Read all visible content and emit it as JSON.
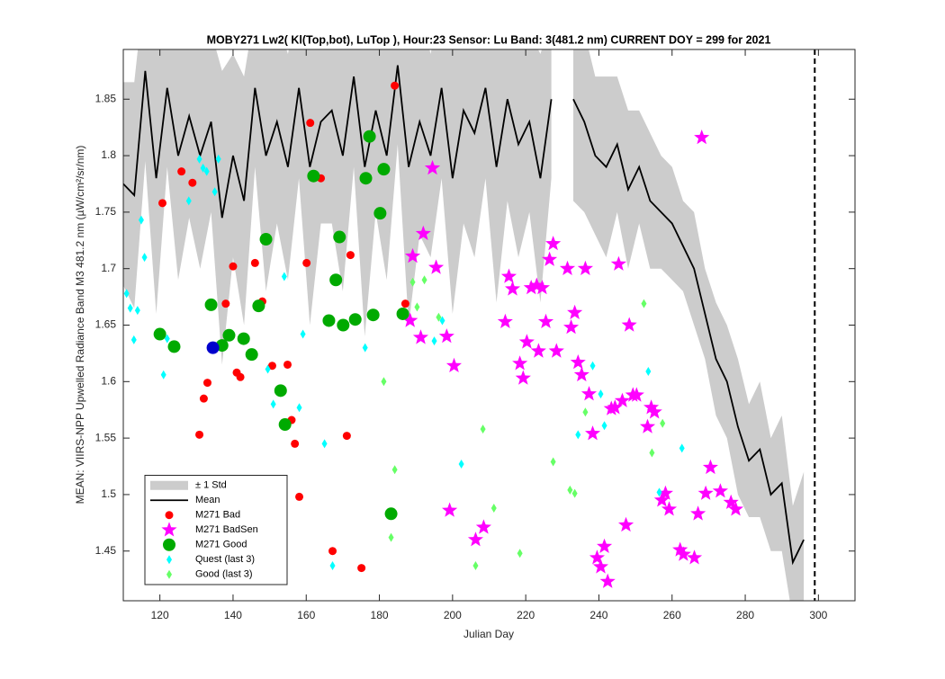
{
  "chart_data": {
    "type": "scatter",
    "title": "MOBY271   Lw2( Kl(Top,bot), LuTop ),   Hour:23 Sensor: Lu Band: 3(481.2 nm)   CURRENT DOY = 299 for 2021",
    "x_label": "Julian Day",
    "y_label": "MEAN: VIIRS-NPP Upwelled Radiance Band M3 481.2 nm (µW/cm²/sr/nm)",
    "xlim": [
      110,
      310
    ],
    "ylim": [
      1.406,
      1.894
    ],
    "xticks": [
      120,
      140,
      160,
      180,
      200,
      220,
      240,
      260,
      280,
      300
    ],
    "yticks": [
      1.45,
      1.5,
      1.55,
      1.6,
      1.65,
      1.7,
      1.75,
      1.8,
      1.85
    ],
    "legend": "southwest",
    "current_doy": 299,
    "x": [
      110,
      113,
      116,
      119,
      122,
      125,
      128,
      131,
      134,
      137,
      140,
      143,
      146,
      149,
      152,
      155,
      158,
      161,
      164,
      167,
      170,
      173,
      176,
      179,
      182,
      185,
      188,
      191,
      194,
      197,
      200,
      203,
      206,
      209,
      212,
      215,
      218,
      221,
      224,
      227,
      230,
      233,
      236,
      239,
      242,
      245,
      248,
      251,
      254,
      257,
      260,
      263,
      266,
      269,
      272,
      275,
      278,
      281,
      284,
      287,
      290,
      293,
      296,
      299,
      302
    ],
    "band": {
      "name": "± 1 Std",
      "color": "#cccccc",
      "values": [
        0.09,
        0.1,
        0.08,
        0.12,
        0.07,
        0.11,
        0.09,
        0.1,
        0.08,
        0.13,
        0.09,
        0.11,
        0.07,
        0.12,
        0.09,
        0.1,
        0.08,
        0.14,
        0.09,
        0.1,
        0.12,
        0.08,
        0.15,
        0.09,
        0.11,
        0.07,
        0.14,
        0.1,
        0.09,
        0.08,
        0.12,
        0.1,
        0.11,
        0.08,
        0.12,
        0.09,
        0.1,
        0.08,
        0.11,
        0.07,
        null,
        0.09,
        0.08,
        0.07,
        0.08,
        0.06,
        0.07,
        0.05,
        0.06,
        0.05,
        0.05,
        0.04,
        0.05,
        0.04,
        0.05,
        0.05,
        0.06,
        0.05,
        0.06,
        0.05,
        0.06,
        0.05,
        0.06,
        null,
        0.05
      ]
    },
    "mean": {
      "name": "Mean",
      "color": "#000000",
      "values": [
        1.775,
        1.765,
        1.875,
        1.78,
        1.86,
        1.8,
        1.835,
        1.8,
        1.83,
        1.745,
        1.8,
        1.76,
        1.86,
        1.8,
        1.83,
        1.79,
        1.86,
        1.79,
        1.83,
        1.84,
        1.8,
        1.87,
        1.79,
        1.84,
        1.8,
        1.88,
        1.79,
        1.83,
        1.8,
        1.86,
        1.78,
        1.84,
        1.82,
        1.86,
        1.79,
        1.85,
        1.81,
        1.83,
        1.78,
        1.85,
        null,
        1.85,
        1.83,
        1.8,
        1.79,
        1.81,
        1.77,
        1.79,
        1.76,
        1.75,
        1.74,
        1.72,
        1.7,
        1.66,
        1.62,
        1.6,
        1.56,
        1.53,
        1.54,
        1.5,
        1.51,
        1.44,
        1.46,
        null,
        1.45
      ]
    },
    "series": [
      {
        "name": "M271 Bad",
        "color": "#ff0000",
        "marker": "circle",
        "x": [
          120.7,
          125.9,
          128.9,
          130.8,
          132,
          133,
          138,
          140,
          141,
          142,
          146,
          148,
          150.7,
          154.9,
          156,
          156.9,
          158.1,
          160.1,
          161.1,
          164,
          167.2,
          171.1,
          172.1,
          175.1,
          184.2,
          187.1
        ],
        "values": [
          1.758,
          1.786,
          1.776,
          1.553,
          1.585,
          1.599,
          1.669,
          1.702,
          1.608,
          1.604,
          1.705,
          1.671,
          1.614,
          1.615,
          1.566,
          1.545,
          1.498,
          1.705,
          1.829,
          1.78,
          1.45,
          1.552,
          1.712,
          1.435,
          1.862,
          1.669
        ]
      },
      {
        "name": "M271 BadSen",
        "color": "#ff00ff",
        "marker": "star",
        "x": [
          194.5,
          192,
          189.1,
          195.5,
          188.4,
          191.3,
          198.4,
          200.4,
          199.2,
          206.3,
          208.5,
          214.4,
          215.4,
          216.4,
          218.4,
          219.3,
          220.3,
          221.5,
          223,
          224.5,
          223.5,
          225.5,
          226.5,
          227.5,
          228.4,
          231.4,
          232.4,
          233.4,
          234.3,
          235.3,
          236.3,
          237.3,
          238.3,
          239.5,
          240.5,
          241.5,
          242.4,
          243.4,
          244.4,
          245.4,
          246.4,
          247.4,
          248.3,
          249.3,
          250.3,
          253.3,
          254.3,
          255.2,
          258.2,
          257.2,
          259.2,
          262.2,
          263.1,
          266.1,
          267.1,
          268.1,
          269.2,
          270.5,
          273.2,
          276.1,
          277.4
        ],
        "values": [
          1.789,
          1.731,
          1.711,
          1.701,
          1.654,
          1.639,
          1.64,
          1.614,
          1.486,
          1.46,
          1.471,
          1.653,
          1.693,
          1.682,
          1.616,
          1.603,
          1.635,
          1.683,
          1.685,
          1.683,
          1.627,
          1.653,
          1.708,
          1.722,
          1.627,
          1.7,
          1.648,
          1.661,
          1.617,
          1.606,
          1.7,
          1.589,
          1.554,
          1.444,
          1.436,
          1.454,
          1.423,
          1.576,
          1.577,
          1.704,
          1.583,
          1.473,
          1.65,
          1.588,
          1.588,
          1.56,
          1.577,
          1.573,
          1.501,
          1.495,
          1.487,
          1.451,
          1.447,
          1.444,
          1.483,
          1.816,
          1.501,
          1.524,
          1.503,
          1.493,
          1.487
        ]
      },
      {
        "name": "M271 Good",
        "color": "#00aa00",
        "marker": "big",
        "x": [
          120,
          123.9,
          134,
          137,
          138.9,
          142.9,
          145.1,
          147,
          149,
          153,
          154.2,
          162,
          166.2,
          168.1,
          169.1,
          170.1,
          173.4,
          176.3,
          177.3,
          178.3,
          180.2,
          181.2,
          183.2,
          186.4
        ],
        "values": [
          1.642,
          1.631,
          1.668,
          1.632,
          1.641,
          1.638,
          1.624,
          1.667,
          1.726,
          1.592,
          1.562,
          1.782,
          1.654,
          1.69,
          1.728,
          1.65,
          1.655,
          1.78,
          1.817,
          1.659,
          1.749,
          1.788,
          1.483,
          1.66
        ]
      },
      {
        "name": "Quest (last 3)",
        "color": "#00ffff",
        "marker": "diamond",
        "x": [
          110.9,
          111.9,
          112.9,
          113.9,
          114.9,
          115.8,
          121,
          122,
          130.8,
          131.8,
          132.8,
          127.9,
          135,
          136,
          149.5,
          151,
          154,
          158.1,
          159.1,
          165,
          167.2,
          176.1,
          195,
          197.2,
          202.4,
          234.3,
          238.3,
          240.5,
          241.5,
          253.5,
          256.5,
          262.7
        ],
        "values": [
          1.678,
          1.665,
          1.637,
          1.663,
          1.743,
          1.71,
          1.606,
          1.638,
          1.797,
          1.789,
          1.786,
          1.76,
          1.768,
          1.797,
          1.611,
          1.58,
          1.693,
          1.577,
          1.642,
          1.545,
          1.437,
          1.63,
          1.636,
          1.654,
          1.527,
          1.553,
          1.614,
          1.589,
          1.561,
          1.609,
          1.502,
          1.541
        ]
      },
      {
        "name": "Good (last 3)",
        "color": "#66ff66",
        "marker": "diamond",
        "x": [
          181.2,
          184.2,
          183.2,
          189.1,
          190.3,
          192.3,
          196.2,
          208.3,
          211.3,
          206.3,
          218.4,
          227.5,
          232.1,
          233.4,
          236.3,
          252.3,
          254.5,
          257.4
        ],
        "values": [
          1.6,
          1.522,
          1.462,
          1.688,
          1.666,
          1.69,
          1.657,
          1.558,
          1.488,
          1.437,
          1.448,
          1.529,
          1.504,
          1.501,
          1.573,
          1.669,
          1.537,
          1.563
        ]
      }
    ],
    "current_point": {
      "x": 134.5,
      "y": 1.63,
      "color": "#0000cc"
    }
  }
}
